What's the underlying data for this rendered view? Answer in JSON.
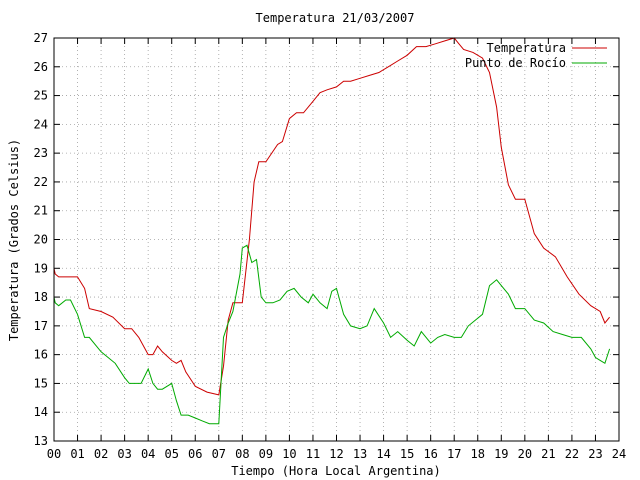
{
  "chart_data": {
    "type": "line",
    "title": "Temperatura 21/03/2007",
    "xlabel": "Tiempo (Hora Local Argentina)",
    "ylabel": "Temperatura (Grados Celsius)",
    "xlim": [
      0,
      24
    ],
    "ylim": [
      13,
      27
    ],
    "x_ticks": [
      0,
      1,
      2,
      3,
      4,
      5,
      6,
      7,
      8,
      9,
      10,
      11,
      12,
      13,
      14,
      15,
      16,
      17,
      18,
      19,
      20,
      21,
      22,
      23,
      24
    ],
    "x_tick_labels": [
      "00",
      "01",
      "02",
      "03",
      "04",
      "05",
      "06",
      "07",
      "08",
      "09",
      "10",
      "11",
      "12",
      "13",
      "14",
      "15",
      "16",
      "17",
      "18",
      "19",
      "20",
      "21",
      "22",
      "23",
      "24"
    ],
    "y_ticks": [
      13,
      14,
      15,
      16,
      17,
      18,
      19,
      20,
      21,
      22,
      23,
      24,
      25,
      26,
      27
    ],
    "y_tick_labels": [
      "13",
      "14",
      "15",
      "16",
      "17",
      "18",
      "19",
      "20",
      "21",
      "22",
      "23",
      "24",
      "25",
      "26",
      "27"
    ],
    "grid": true,
    "legend_position": "top-right",
    "series": [
      {
        "name": "Temperatura",
        "color": "#cc0000",
        "x": [
          0.0,
          0.05,
          0.2,
          1.0,
          1.3,
          1.5,
          2.0,
          2.5,
          3.0,
          3.3,
          3.6,
          4.0,
          4.2,
          4.4,
          4.6,
          5.0,
          5.2,
          5.4,
          5.6,
          6.0,
          6.5,
          7.0,
          7.2,
          7.4,
          7.6,
          8.0,
          8.3,
          8.5,
          8.7,
          9.0,
          9.5,
          9.7,
          10.0,
          10.3,
          10.6,
          11.0,
          11.3,
          11.6,
          12.0,
          12.3,
          12.6,
          13.0,
          13.4,
          13.8,
          14.2,
          14.6,
          15.0,
          15.4,
          15.8,
          16.2,
          16.6,
          17.0,
          17.2,
          17.4,
          17.8,
          18.2,
          18.5,
          18.8,
          19.0,
          19.3,
          19.6,
          20.0,
          20.4,
          20.8,
          21.3,
          21.8,
          22.3,
          22.8,
          23.2,
          23.4,
          23.6
        ],
        "y": [
          19.0,
          18.8,
          18.7,
          18.7,
          18.3,
          17.6,
          17.5,
          17.3,
          16.9,
          16.9,
          16.6,
          16.0,
          16.0,
          16.3,
          16.1,
          15.8,
          15.7,
          15.8,
          15.4,
          14.9,
          14.7,
          14.6,
          15.6,
          17.2,
          17.8,
          17.8,
          20.0,
          22.0,
          22.7,
          22.7,
          23.3,
          23.4,
          24.2,
          24.4,
          24.4,
          24.8,
          25.1,
          25.2,
          25.3,
          25.5,
          25.5,
          25.6,
          25.7,
          25.8,
          26.0,
          26.2,
          26.4,
          26.7,
          26.7,
          26.8,
          26.9,
          27.0,
          26.8,
          26.6,
          26.5,
          26.3,
          25.8,
          24.6,
          23.2,
          21.9,
          21.4,
          21.4,
          20.2,
          19.7,
          19.4,
          18.7,
          18.1,
          17.7,
          17.5,
          17.1,
          17.3
        ]
      },
      {
        "name": "Punto de Rocío",
        "color": "#00aa00",
        "x": [
          0.0,
          0.05,
          0.2,
          0.5,
          0.7,
          1.0,
          1.3,
          1.5,
          2.0,
          2.3,
          2.6,
          3.0,
          3.2,
          3.4,
          3.7,
          4.0,
          4.2,
          4.4,
          4.6,
          5.0,
          5.2,
          5.4,
          5.7,
          6.0,
          6.3,
          6.6,
          7.0,
          7.2,
          7.4,
          7.6,
          7.9,
          8.0,
          8.2,
          8.4,
          8.6,
          8.8,
          9.0,
          9.3,
          9.6,
          9.9,
          10.2,
          10.5,
          10.8,
          11.0,
          11.3,
          11.6,
          11.8,
          12.0,
          12.3,
          12.6,
          13.0,
          13.3,
          13.6,
          14.0,
          14.3,
          14.6,
          15.0,
          15.3,
          15.6,
          16.0,
          16.3,
          16.6,
          17.0,
          17.3,
          17.6,
          17.9,
          18.2,
          18.5,
          18.8,
          19.0,
          19.3,
          19.6,
          20.0,
          20.4,
          20.8,
          21.2,
          21.6,
          22.0,
          22.4,
          22.8,
          23.0,
          23.2,
          23.4,
          23.6
        ],
        "y": [
          18.0,
          17.8,
          17.7,
          17.9,
          17.9,
          17.4,
          16.6,
          16.6,
          16.1,
          15.9,
          15.7,
          15.2,
          15.0,
          15.0,
          15.0,
          15.5,
          15.0,
          14.8,
          14.8,
          15.0,
          14.4,
          13.9,
          13.9,
          13.8,
          13.7,
          13.6,
          13.6,
          16.6,
          17.1,
          17.5,
          18.8,
          19.7,
          19.8,
          19.2,
          19.3,
          18.0,
          17.8,
          17.8,
          17.9,
          18.2,
          18.3,
          18.0,
          17.8,
          18.1,
          17.8,
          17.6,
          18.2,
          18.3,
          17.4,
          17.0,
          16.9,
          17.0,
          17.6,
          17.1,
          16.6,
          16.8,
          16.5,
          16.3,
          16.8,
          16.4,
          16.6,
          16.7,
          16.6,
          16.6,
          17.0,
          17.2,
          17.4,
          18.4,
          18.6,
          18.4,
          18.1,
          17.6,
          17.6,
          17.2,
          17.1,
          16.8,
          16.7,
          16.6,
          16.6,
          16.2,
          15.9,
          15.8,
          15.7,
          16.2
        ]
      }
    ]
  }
}
